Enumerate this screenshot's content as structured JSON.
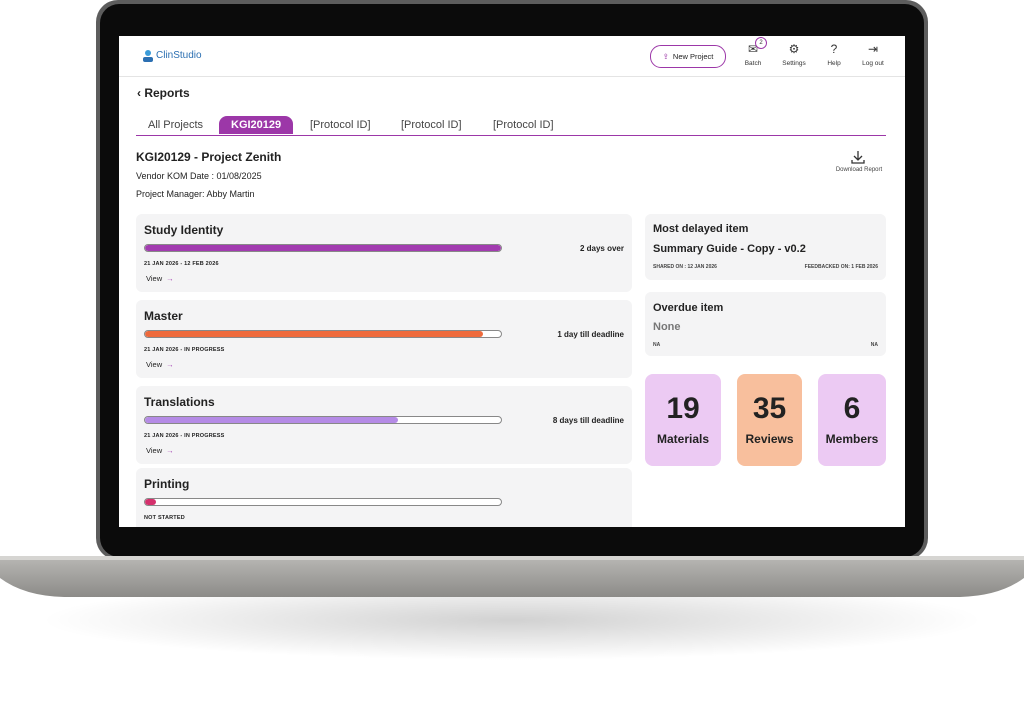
{
  "header": {
    "logo": "ClinStudio",
    "new_project": "New Project",
    "nav": [
      {
        "label": "Batch",
        "badge": 2
      },
      {
        "label": "Settings"
      },
      {
        "label": "Help"
      },
      {
        "label": "Log out"
      }
    ]
  },
  "page": {
    "back": "Reports",
    "tabs": [
      "All Projects",
      "KGI20129",
      "[Protocol ID]",
      "[Protocol ID]",
      "[Protocol ID]"
    ],
    "active_tab": 1
  },
  "project": {
    "title": "KGI20129 - Project Zenith",
    "vendor_kom": "Vendor KOM Date : 01/08/2025",
    "manager": "Project Manager: Abby Martin",
    "download": "Download Report"
  },
  "stages": [
    {
      "name": "Study Identity",
      "progress": 100,
      "color": "#a23bb0",
      "status": "2 days over",
      "dates": "21 JAN 2026 - 12 FEB 2026",
      "link": "View"
    },
    {
      "name": "Master",
      "progress": 95,
      "color": "#ee6a3c",
      "status": "1 day till deadline",
      "dates": "21 JAN 2026 - IN PROGRESS",
      "link": "View"
    },
    {
      "name": "Translations",
      "progress": 71,
      "color": "#b58be6",
      "status": "8 days till deadline",
      "dates": "21 JAN 2026 - IN PROGRESS",
      "link": "View"
    },
    {
      "name": "Printing",
      "progress": 3,
      "color": "#d4306c",
      "dates": "NOT STARTED"
    }
  ],
  "most_delayed": {
    "title": "Most delayed item",
    "item": "Summary Guide - Copy - v0.2",
    "shared": "SHARED ON : 12 JAN 2026",
    "feedback": "FEEDBACKED ON: 1 FEB 2026"
  },
  "overdue": {
    "title": "Overdue item",
    "item": "None",
    "left": "NA",
    "right": "NA"
  },
  "stats": [
    {
      "value": 19,
      "label": "Materials",
      "color": "#eccaf3"
    },
    {
      "value": 35,
      "label": "Reviews",
      "color": "#f8bf9d"
    },
    {
      "value": 6,
      "label": "Members",
      "color": "#eccaf3"
    }
  ]
}
